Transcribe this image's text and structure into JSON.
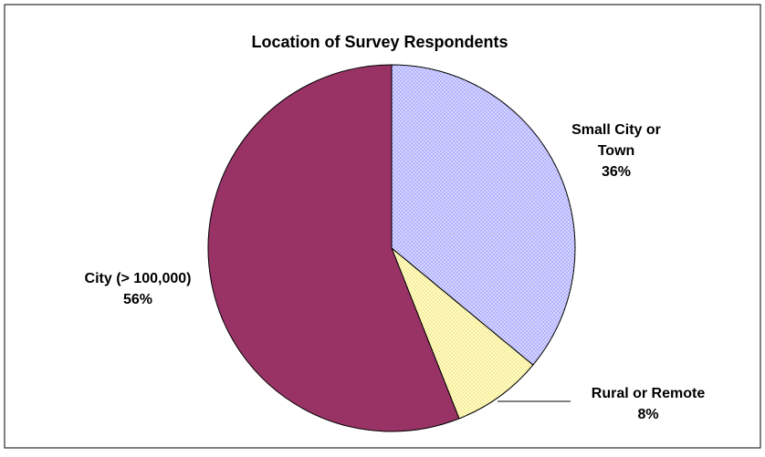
{
  "chart_data": {
    "type": "pie",
    "title": "Location of Survey Respondents",
    "slices": [
      {
        "label_lines": [
          "Small City or",
          "Town"
        ],
        "value": 36,
        "value_label": "36%",
        "color": "#b3b3ff",
        "pattern": "dots"
      },
      {
        "label_lines": [
          "Rural or Remote"
        ],
        "value": 8,
        "value_label": "8%",
        "color": "#ffffc0",
        "pattern": "dots"
      },
      {
        "label_lines": [
          "City (> 100,000)"
        ],
        "value": 56,
        "value_label": "56%",
        "color": "#993366",
        "pattern": "solid"
      }
    ],
    "legend": "none",
    "start_angle_deg": 0,
    "direction": "clockwise"
  }
}
